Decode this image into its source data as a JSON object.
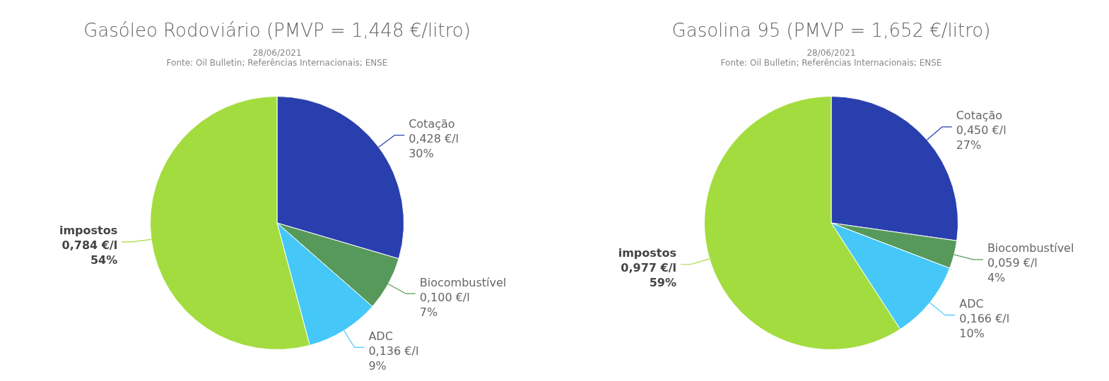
{
  "chart_data": [
    {
      "type": "pie",
      "title": "Gasóleo Rodoviário (PMVP = 1,448 €/litro)",
      "subtitle": "28/06/2021",
      "annotations": [
        "Fonte: Oil Bulletin; Referências Internacionais; ENSE"
      ],
      "categories": [
        "Cotação",
        "Biocombustível",
        "ADC",
        "impostos"
      ],
      "values": [
        0.428,
        0.1,
        0.136,
        0.784
      ],
      "value_labels": [
        "0,428 €/l\n30%",
        "0,100 €/l\n7%",
        "0,136 €/l\n9%",
        "0,784 €/l\n54%"
      ],
      "colors": [
        "#2a3fae",
        "#57995a",
        "#45c8f8",
        "#a3dc3f"
      ]
    },
    {
      "type": "pie",
      "title": "Gasolina 95 (PMVP = 1,652 €/litro)",
      "subtitle": "28/06/2021",
      "annotations": [
        "Fonte: Oil Bulletin; Referências Internacionais; ENSE"
      ],
      "categories": [
        "Cotação",
        "Biocombustível",
        "ADC",
        "impostos"
      ],
      "values": [
        0.45,
        0.059,
        0.166,
        0.977
      ],
      "value_labels": [
        "0,450 €/l\n27%",
        "0,059 €/l\n4%",
        "0,166 €/l\n10%",
        "0,977 €/l\n59%"
      ],
      "colors": [
        "#2a3fae",
        "#57995a",
        "#45c8f8",
        "#a3dc3f"
      ]
    }
  ]
}
